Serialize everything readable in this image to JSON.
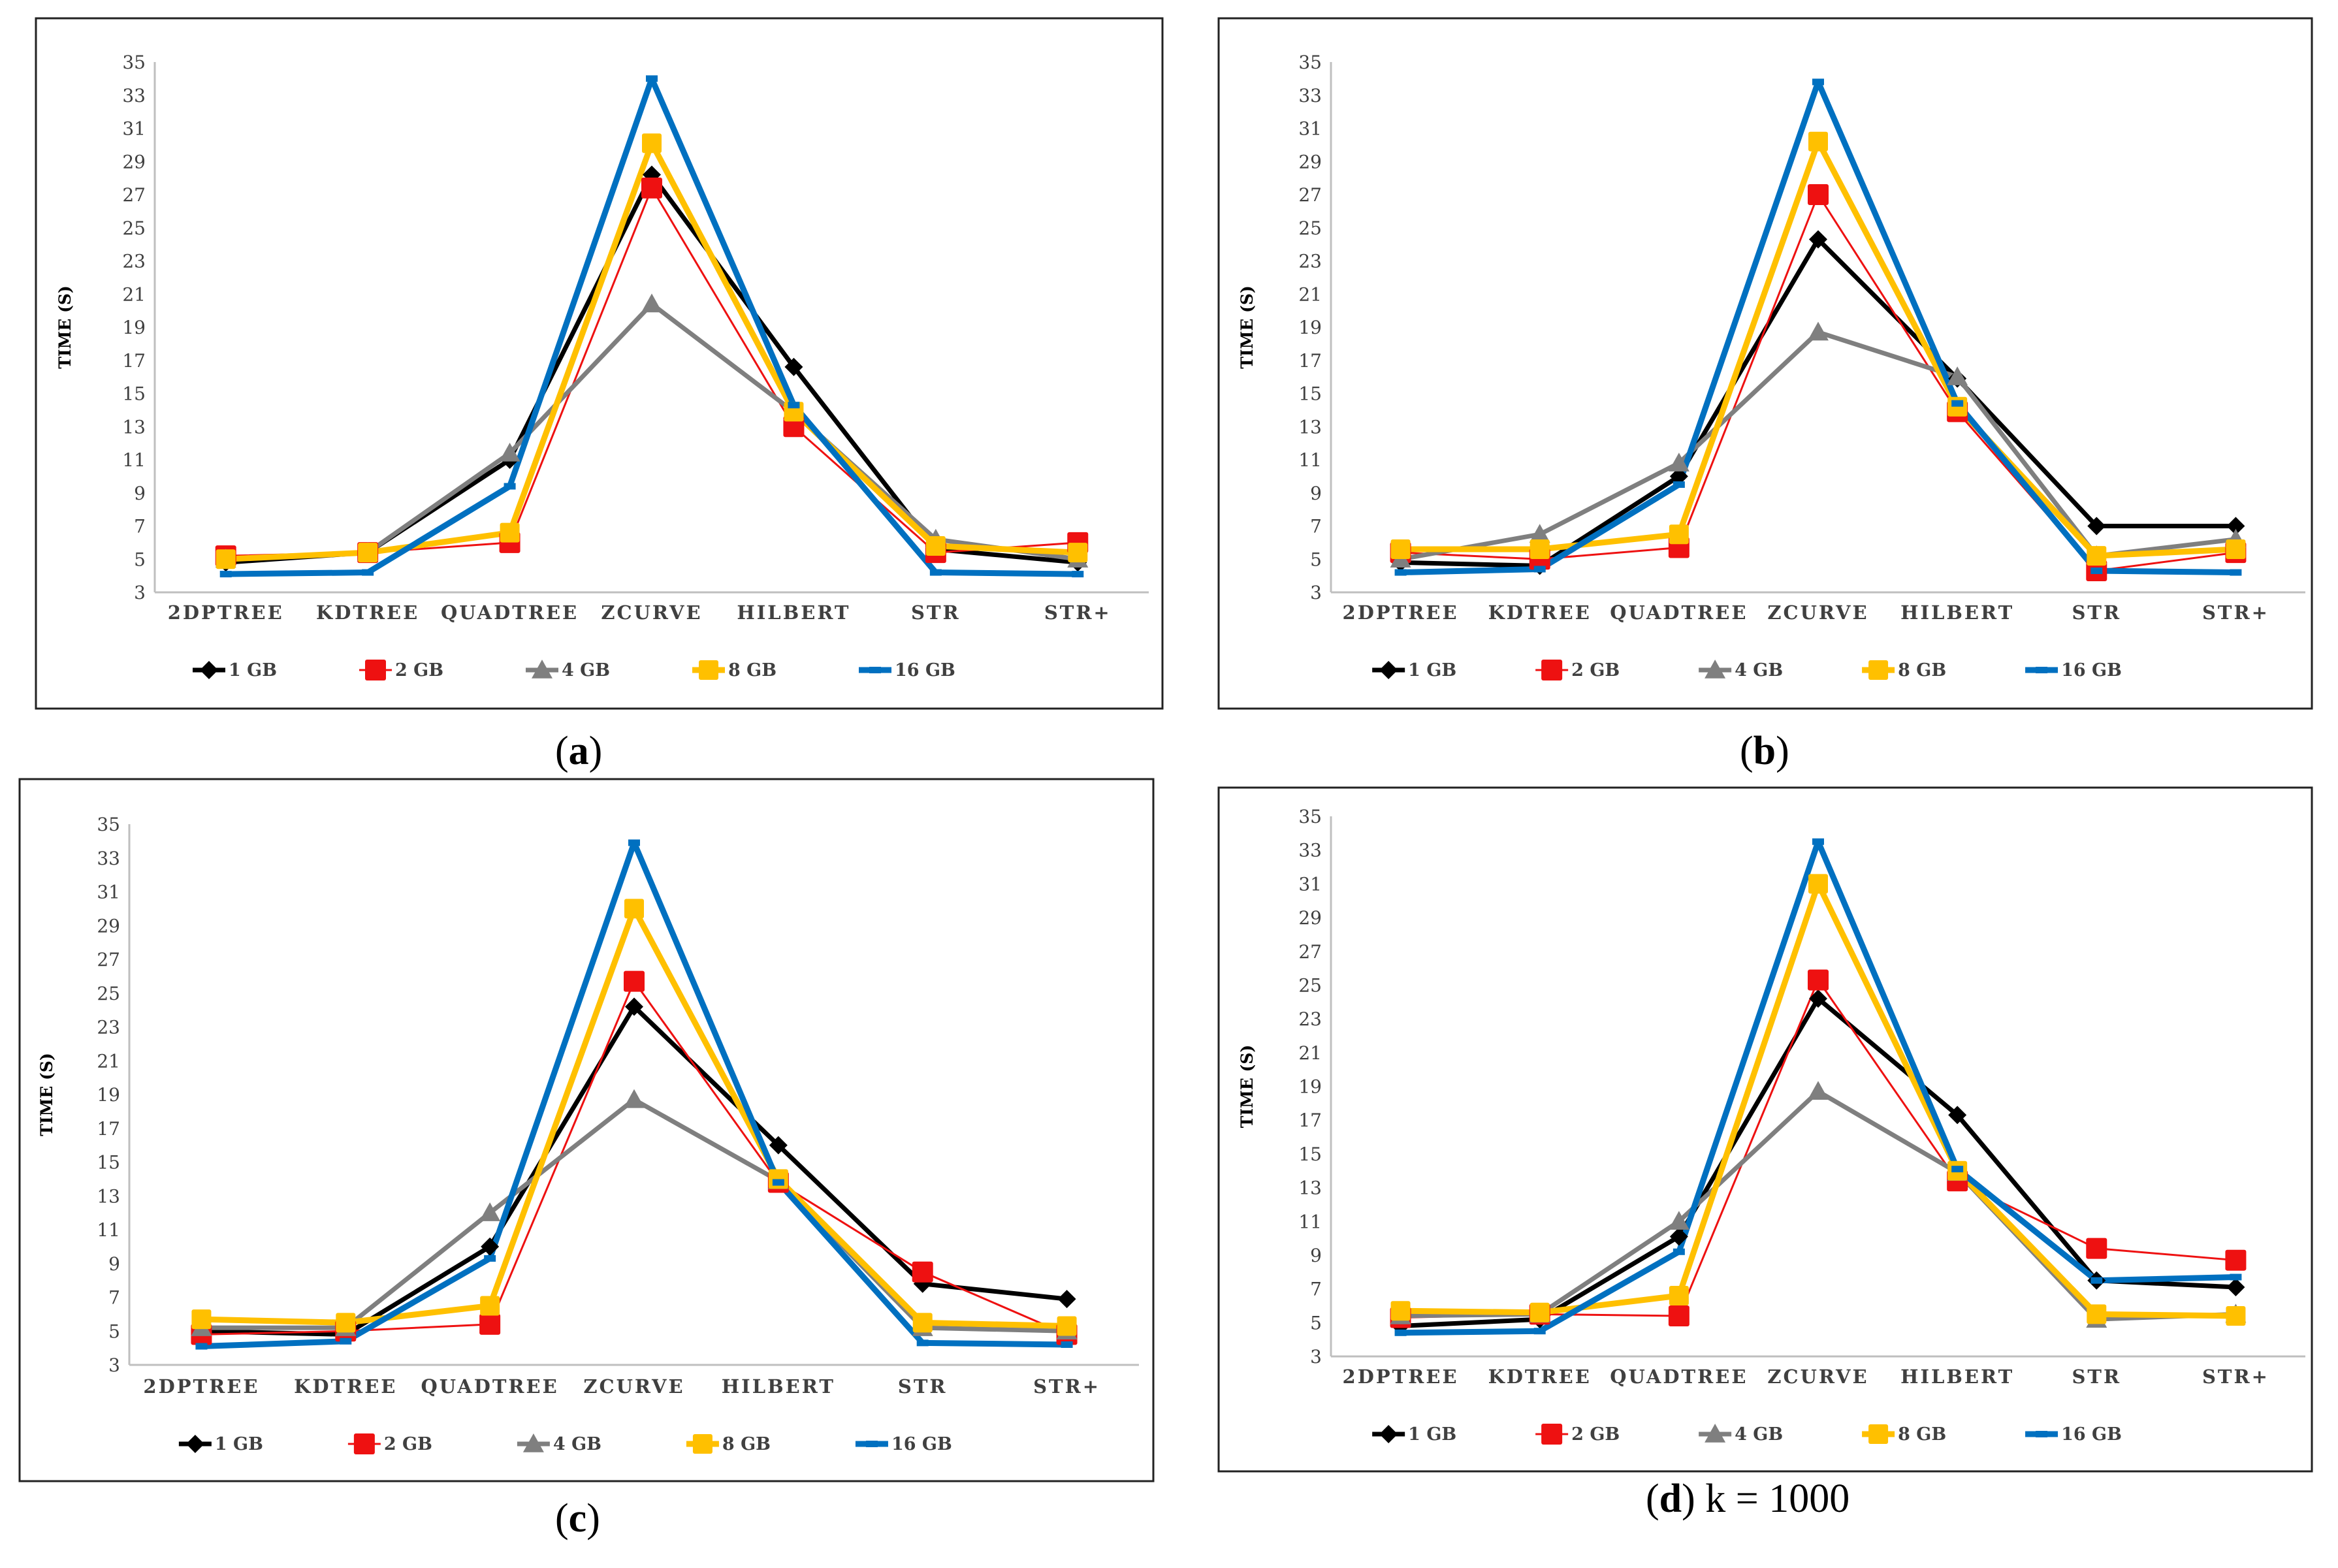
{
  "colors": {
    "1 GB": "#000000",
    "2 GB": "#ee1111",
    "4 GB": "#7f7f7f",
    "8 GB": "#ffc000",
    "16 GB": "#0070c0"
  },
  "captions": [
    {
      "letter": "a",
      "suffix": ""
    },
    {
      "letter": "b",
      "suffix": ""
    },
    {
      "letter": "c",
      "suffix": ""
    },
    {
      "letter": "d",
      "suffix": " k = 1000"
    }
  ],
  "chart_data": [
    {
      "type": "line",
      "ylabel": "TIME (S)",
      "ylim": [
        3,
        35
      ],
      "yticks": [
        "3",
        "5",
        "7",
        "9",
        "11",
        "13",
        "15",
        "17",
        "19",
        "21",
        "23",
        "25",
        "27",
        "29",
        "31",
        "33",
        "35"
      ],
      "categories": [
        "2DPTREE",
        "KDTREE",
        "QUADTREE",
        "ZCURVE",
        "HILBERT",
        "STR",
        "STR+"
      ],
      "series": [
        {
          "name": "1 GB",
          "marker": "diamond",
          "values": [
            4.8,
            5.4,
            11.0,
            28.2,
            16.6,
            5.6,
            4.8
          ]
        },
        {
          "name": "2 GB",
          "marker": "square",
          "values": [
            5.2,
            5.4,
            6.0,
            27.4,
            13.0,
            5.4,
            6.0
          ]
        },
        {
          "name": "4 GB",
          "marker": "triangle",
          "values": [
            5.0,
            5.4,
            11.4,
            20.4,
            13.9,
            6.2,
            5.0
          ]
        },
        {
          "name": "8 GB",
          "marker": "square",
          "values": [
            5.0,
            5.4,
            6.6,
            30.1,
            13.9,
            5.8,
            5.4
          ]
        },
        {
          "name": "16 GB",
          "marker": "dash",
          "values": [
            4.1,
            4.2,
            9.4,
            34.0,
            14.3,
            4.2,
            4.1
          ]
        }
      ]
    },
    {
      "type": "line",
      "ylabel": "TIME (S)",
      "ylim": [
        3,
        35
      ],
      "yticks": [
        "3",
        "5",
        "7",
        "9",
        "11",
        "13",
        "15",
        "17",
        "19",
        "21",
        "23",
        "25",
        "27",
        "29",
        "31",
        "33",
        "35"
      ],
      "categories": [
        "2DPTREE",
        "KDTREE",
        "QUADTREE",
        "ZCURVE",
        "HILBERT",
        "STR",
        "STR+"
      ],
      "series": [
        {
          "name": "1 GB",
          "marker": "diamond",
          "values": [
            4.8,
            4.6,
            10.0,
            24.3,
            15.9,
            7.0,
            7.0
          ]
        },
        {
          "name": "2 GB",
          "marker": "square",
          "values": [
            5.4,
            5.0,
            5.7,
            27.0,
            13.9,
            4.3,
            5.4
          ]
        },
        {
          "name": "4 GB",
          "marker": "triangle",
          "values": [
            5.0,
            6.5,
            10.8,
            18.7,
            16.0,
            5.2,
            6.2
          ]
        },
        {
          "name": "8 GB",
          "marker": "square",
          "values": [
            5.6,
            5.6,
            6.5,
            30.2,
            14.2,
            5.2,
            5.6
          ]
        },
        {
          "name": "16 GB",
          "marker": "dash",
          "values": [
            4.2,
            4.4,
            9.5,
            33.8,
            14.4,
            4.3,
            4.2
          ]
        }
      ]
    },
    {
      "type": "line",
      "ylabel": "TIME (S)",
      "ylim": [
        3,
        35
      ],
      "yticks": [
        "3",
        "5",
        "7",
        "9",
        "11",
        "13",
        "15",
        "17",
        "19",
        "21",
        "23",
        "25",
        "27",
        "29",
        "31",
        "33",
        "35"
      ],
      "categories": [
        "2DPTREE",
        "KDTREE",
        "QUADTREE",
        "ZCURVE",
        "HILBERT",
        "STR",
        "STR+"
      ],
      "series": [
        {
          "name": "1 GB",
          "marker": "diamond",
          "values": [
            5.0,
            4.8,
            10.0,
            24.2,
            16.0,
            7.8,
            6.9
          ]
        },
        {
          "name": "2 GB",
          "marker": "square",
          "values": [
            4.8,
            5.0,
            5.4,
            25.7,
            13.8,
            8.5,
            4.8
          ]
        },
        {
          "name": "4 GB",
          "marker": "triangle",
          "values": [
            5.2,
            5.2,
            12.0,
            18.7,
            13.9,
            5.2,
            5.0
          ]
        },
        {
          "name": "8 GB",
          "marker": "square",
          "values": [
            5.7,
            5.5,
            6.5,
            30.0,
            14.0,
            5.5,
            5.3
          ]
        },
        {
          "name": "16 GB",
          "marker": "dash",
          "values": [
            4.1,
            4.4,
            9.3,
            33.9,
            13.8,
            4.3,
            4.2
          ]
        }
      ]
    },
    {
      "type": "line",
      "ylabel": "TIME (S)",
      "ylim": [
        3,
        35
      ],
      "yticks": [
        "3",
        "5",
        "7",
        "9",
        "11",
        "13",
        "15",
        "17",
        "19",
        "21",
        "23",
        "25",
        "27",
        "29",
        "31",
        "33",
        "35"
      ],
      "categories": [
        "2DPTREE",
        "KDTREE",
        "QUADTREE",
        "ZCURVE",
        "HILBERT",
        "STR",
        "STR+"
      ],
      "series": [
        {
          "name": "1 GB",
          "marker": "diamond",
          "values": [
            4.8,
            5.2,
            10.1,
            24.2,
            17.3,
            7.5,
            7.1
          ]
        },
        {
          "name": "2 GB",
          "marker": "square",
          "values": [
            5.3,
            5.5,
            5.4,
            25.3,
            13.4,
            9.4,
            8.7
          ]
        },
        {
          "name": "4 GB",
          "marker": "triangle",
          "values": [
            5.4,
            5.5,
            11.0,
            18.7,
            13.9,
            5.2,
            5.5
          ]
        },
        {
          "name": "8 GB",
          "marker": "square",
          "values": [
            5.7,
            5.6,
            6.6,
            31.0,
            14.0,
            5.5,
            5.4
          ]
        },
        {
          "name": "16 GB",
          "marker": "dash",
          "values": [
            4.4,
            4.5,
            9.2,
            33.5,
            14.1,
            7.5,
            7.7
          ]
        }
      ]
    }
  ]
}
